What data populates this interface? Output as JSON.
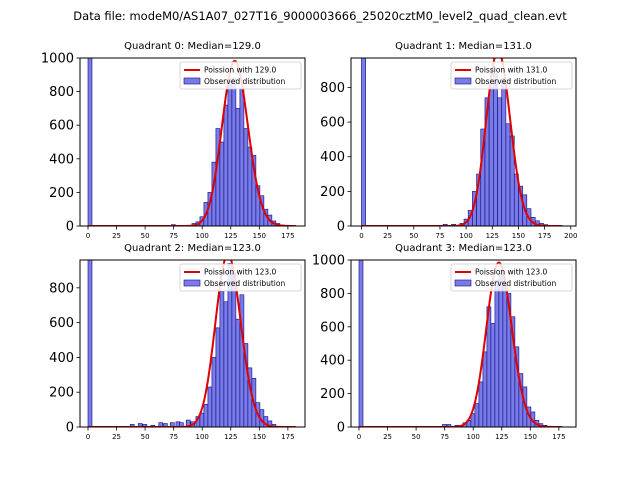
{
  "figure_title": "Data file: modeM0/AS1A07_027T16_9000003666_25020cztM0_level2_quad_clean.evt",
  "colors": {
    "bar_fill": "#7b7be6",
    "bar_edge": "#0a0a8a",
    "curve": "#e00000",
    "axis": "#000000"
  },
  "chart_data": [
    {
      "type": "bar",
      "title": "Quadrant 0: Median=129.0",
      "legend": {
        "curve": "Poission with 129.0",
        "bars": "Observed distribution",
        "placement": "top-right"
      },
      "xlim": [
        -7,
        190
      ],
      "ylim": [
        0,
        1000
      ],
      "xticks": [
        0,
        25,
        50,
        75,
        100,
        125,
        150,
        175
      ],
      "yticks": [
        0,
        200,
        400,
        600,
        800,
        1000
      ],
      "bin_width": 3.5,
      "bins": [
        [
          0,
          1000
        ],
        [
          73,
          8
        ],
        [
          84,
          4
        ],
        [
          91,
          15
        ],
        [
          94.5,
          25
        ],
        [
          98,
          55
        ],
        [
          101.5,
          140
        ],
        [
          105,
          200
        ],
        [
          108.5,
          380
        ],
        [
          112,
          580
        ],
        [
          115.5,
          500
        ],
        [
          119,
          720
        ],
        [
          122.5,
          860
        ],
        [
          126,
          880
        ],
        [
          129.5,
          700
        ],
        [
          133,
          820
        ],
        [
          136.5,
          580
        ],
        [
          140,
          470
        ],
        [
          143.5,
          420
        ],
        [
          147,
          240
        ],
        [
          150.5,
          180
        ],
        [
          154,
          100
        ],
        [
          157.5,
          65
        ],
        [
          161,
          30
        ],
        [
          164.5,
          15
        ],
        [
          168,
          6
        ]
      ],
      "poisson_mean": 129.0,
      "curve_x": [
        0,
        182
      ]
    },
    {
      "type": "bar",
      "title": "Quadrant 1: Median=131.0",
      "legend": {
        "curve": "Poission with 131.0",
        "bars": "Observed distribution",
        "placement": "top-right"
      },
      "xlim": [
        -10,
        205
      ],
      "ylim": [
        0,
        970
      ],
      "xticks": [
        0,
        25,
        50,
        75,
        100,
        125,
        150,
        175,
        200
      ],
      "yticks": [
        0,
        200,
        400,
        600,
        800
      ],
      "bin_width": 4,
      "bins": [
        [
          0,
          970
        ],
        [
          78,
          10
        ],
        [
          86,
          10
        ],
        [
          94,
          15
        ],
        [
          98,
          40
        ],
        [
          102,
          90
        ],
        [
          106,
          200
        ],
        [
          110,
          300
        ],
        [
          114,
          560
        ],
        [
          118,
          740
        ],
        [
          122,
          800
        ],
        [
          126,
          880
        ],
        [
          130,
          740
        ],
        [
          134,
          850
        ],
        [
          138,
          590
        ],
        [
          142,
          520
        ],
        [
          146,
          300
        ],
        [
          150,
          230
        ],
        [
          154,
          180
        ],
        [
          158,
          100
        ],
        [
          162,
          50
        ],
        [
          166,
          30
        ],
        [
          170,
          15
        ],
        [
          174,
          8
        ]
      ],
      "poisson_mean": 131.0,
      "curve_x": [
        0,
        192
      ]
    },
    {
      "type": "bar",
      "title": "Quadrant 2: Median=123.0",
      "legend": {
        "curve": "Poission with 123.0",
        "bars": "Observed distribution",
        "placement": "top-right"
      },
      "xlim": [
        -7,
        190
      ],
      "ylim": [
        0,
        960
      ],
      "xticks": [
        0,
        25,
        50,
        75,
        100,
        125,
        150,
        175
      ],
      "yticks": [
        0,
        200,
        400,
        600,
        800
      ],
      "bin_width": 3.5,
      "bins": [
        [
          0,
          960
        ],
        [
          37,
          15
        ],
        [
          44,
          20
        ],
        [
          48,
          15
        ],
        [
          55,
          10
        ],
        [
          62,
          25
        ],
        [
          66,
          20
        ],
        [
          72,
          25
        ],
        [
          77,
          30
        ],
        [
          80,
          25
        ],
        [
          86,
          40
        ],
        [
          90,
          30
        ],
        [
          94.5,
          60
        ],
        [
          98,
          80
        ],
        [
          101.5,
          130
        ],
        [
          105,
          230
        ],
        [
          108.5,
          400
        ],
        [
          112,
          570
        ],
        [
          115.5,
          780
        ],
        [
          119,
          720
        ],
        [
          122.5,
          940
        ],
        [
          126,
          880
        ],
        [
          129.5,
          620
        ],
        [
          133,
          760
        ],
        [
          136.5,
          480
        ],
        [
          140,
          340
        ],
        [
          143.5,
          280
        ],
        [
          147,
          140
        ],
        [
          150.5,
          100
        ],
        [
          154,
          60
        ],
        [
          157.5,
          35
        ],
        [
          161,
          15
        ]
      ],
      "poisson_mean": 123.0,
      "curve_x": [
        0,
        182
      ]
    },
    {
      "type": "bar",
      "title": "Quadrant 3: Median=123.0",
      "legend": {
        "curve": "Poission with 123.0",
        "bars": "Observed distribution",
        "placement": "top-right"
      },
      "xlim": [
        -7,
        190
      ],
      "ylim": [
        0,
        1000
      ],
      "xticks": [
        0,
        25,
        50,
        75,
        100,
        125,
        150,
        175
      ],
      "yticks": [
        0,
        200,
        400,
        600,
        800,
        1000
      ],
      "bin_width": 3.5,
      "bins": [
        [
          0,
          1000
        ],
        [
          73,
          15
        ],
        [
          77,
          15
        ],
        [
          84,
          10
        ],
        [
          91,
          25
        ],
        [
          94.5,
          40
        ],
        [
          98,
          80
        ],
        [
          101.5,
          140
        ],
        [
          105,
          270
        ],
        [
          108.5,
          450
        ],
        [
          112,
          720
        ],
        [
          115.5,
          620
        ],
        [
          119,
          880
        ],
        [
          122.5,
          920
        ],
        [
          126,
          860
        ],
        [
          129.5,
          800
        ],
        [
          133,
          660
        ],
        [
          136.5,
          480
        ],
        [
          140,
          320
        ],
        [
          143.5,
          240
        ],
        [
          147,
          120
        ],
        [
          150.5,
          90
        ],
        [
          154,
          40
        ],
        [
          157.5,
          20
        ],
        [
          161,
          10
        ]
      ],
      "poisson_mean": 123.0,
      "curve_x": [
        0,
        178
      ]
    }
  ]
}
